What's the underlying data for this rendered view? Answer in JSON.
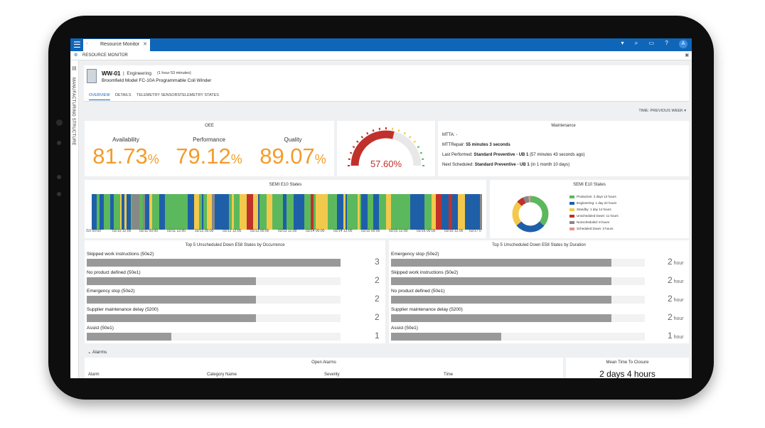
{
  "app": {
    "tab_title": "Resource Monitor",
    "page_title": "RESOURCE MONITOR",
    "sidebar_label": "MANUFACTURING STRUCTURE",
    "avatar_initial": "A"
  },
  "resource": {
    "id": "WW-01",
    "department": "Engineering",
    "duration": "(1 hour 53 minutes)",
    "model": "Broomfield Model FC-10A Programmable Coil Winder"
  },
  "tabs": [
    "OVERVIEW",
    "DETAILS",
    "TELEMETRY SENSORS",
    "TELEMETRY STATES"
  ],
  "time_filter": "TIME: PREVIOUS WEEK",
  "oee": {
    "title": "OEE",
    "metrics": [
      {
        "label": "Availability",
        "value": "81.73",
        "unit": "%"
      },
      {
        "label": "Performance",
        "value": "79.12",
        "unit": "%"
      },
      {
        "label": "Quality",
        "value": "89.07",
        "unit": "%"
      }
    ]
  },
  "gauge": {
    "value_text": "57.60%",
    "value": 57.6,
    "max": 100,
    "color": "#c0312b"
  },
  "maintenance": {
    "title": "Maintenance",
    "mtta": "MTTA: -",
    "mttrepair_label": "MTTRepair:",
    "mttrepair_value": "55 minutes 3 seconds",
    "last_label": "Last Performed:",
    "last_value": "Standard Preventive - UB 1",
    "last_note": "(57 minutes 43 seconds ago)",
    "next_label": "Next Scheduled:",
    "next_value": "Standard Preventive - UB 1",
    "next_note": "(in 1 month 10 days)"
  },
  "semi_timeline": {
    "title": "SEMI E10 States",
    "ticks": [
      "/10 00:00",
      "02/10 12:00",
      "02/11 00:00",
      "02/11 12:00",
      "02/12 00:00",
      "02/12 12:00",
      "02/13 00:00",
      "02/13 12:00",
      "02/14 00:00",
      "02/14 12:00",
      "02/15 00:00",
      "02/15 12:00",
      "02/16 00:00",
      "02/16 12:00",
      "02/17 0"
    ]
  },
  "chart_data": [
    {
      "type": "pie",
      "title": "SEMI E10 States",
      "categories": [
        "Productive: 2 days 12 hours",
        "Engineering: 1 day 22 hours",
        "Standby: 1 day 14 hours",
        "Unscheduled Down: 11 hours",
        "Nonscheduled: 8 hours",
        "Scheduled Down: 3 hours"
      ],
      "values": [
        60,
        46,
        38,
        11,
        8,
        3
      ],
      "colors": [
        "#5cb85c",
        "#1f5fa8",
        "#f2c94c",
        "#c0312b",
        "#888888",
        "#e8918f"
      ],
      "legend": "right"
    },
    {
      "type": "bar",
      "title": "Top 5 Unscheduled Down E58 States by Occurrence",
      "categories": [
        "Skipped work instructions (50e2)",
        "No product defined (50e1)",
        "Emergency stop (50e2)",
        "Supplier maintenance delay (5200)",
        "Assist (50e1)"
      ],
      "values": [
        3,
        2,
        2,
        2,
        1
      ],
      "value_labels": [
        "3",
        "2",
        "2",
        "2",
        "1"
      ]
    },
    {
      "type": "bar",
      "title": "Top 5 Unscheduled Down E58 States by Duration",
      "categories": [
        "Emergency stop (50e2)",
        "Skipped work instructions (50e2)",
        "No product defined (50e1)",
        "Supplier maintenance delay (5200)",
        "Assist (50e1)"
      ],
      "values": [
        2,
        2,
        2,
        2,
        1
      ],
      "value_labels": [
        "2",
        "2",
        "2",
        "2",
        "1"
      ],
      "unit": "hour"
    }
  ],
  "alarms": {
    "section": "Alarms",
    "open_title": "Open Alarms",
    "columns": [
      "Alarm",
      "Category Name",
      "Severity",
      "Time"
    ],
    "mttc_title": "Mean Time To Closure",
    "mttc_value": "2 days 4 hours"
  }
}
